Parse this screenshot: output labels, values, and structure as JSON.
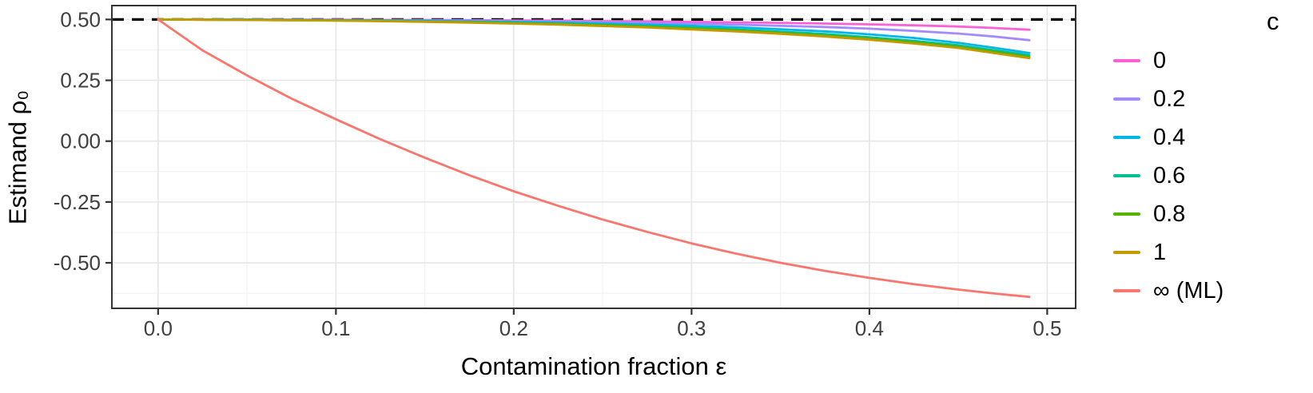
{
  "chart_data": {
    "type": "line",
    "title": "",
    "xlabel": "Contamination fraction ε",
    "ylabel": "Estimand ρ₀",
    "legend_title": "c",
    "legend_position": "right",
    "grid": true,
    "panel_background": "#FFFFFF",
    "panel_border_color": "#333333",
    "major_grid_color": "#E6E6E6",
    "minor_grid_color": "#F3F3F3",
    "tick_label_color": "#404040",
    "xlim": [
      -0.026,
      0.516
    ],
    "ylim": [
      -0.687,
      0.557
    ],
    "x_ticks": [
      {
        "v": 0.0,
        "label": "0.0"
      },
      {
        "v": 0.1,
        "label": "0.1"
      },
      {
        "v": 0.2,
        "label": "0.2"
      },
      {
        "v": 0.3,
        "label": "0.3"
      },
      {
        "v": 0.4,
        "label": "0.4"
      },
      {
        "v": 0.5,
        "label": "0.5"
      }
    ],
    "y_ticks": [
      {
        "v": -0.5,
        "label": "-0.50"
      },
      {
        "v": -0.25,
        "label": "-0.25"
      },
      {
        "v": 0.0,
        "label": "0.00"
      },
      {
        "v": 0.25,
        "label": "0.25"
      },
      {
        "v": 0.5,
        "label": "0.50"
      }
    ],
    "reference_line": {
      "y": 0.5,
      "style": "dashed",
      "color": "#000000"
    },
    "x": [
      0,
      0.025,
      0.05,
      0.075,
      0.1,
      0.125,
      0.15,
      0.175,
      0.2,
      0.225,
      0.25,
      0.275,
      0.3,
      0.325,
      0.35,
      0.375,
      0.4,
      0.425,
      0.45,
      0.47,
      0.49
    ],
    "series": [
      {
        "name": "0",
        "color": "#FB61D7",
        "values": [
          0.5,
          0.5,
          0.5,
          0.499,
          0.499,
          0.498,
          0.498,
          0.497,
          0.496,
          0.495,
          0.493,
          0.492,
          0.49,
          0.488,
          0.486,
          0.483,
          0.48,
          0.476,
          0.471,
          0.465,
          0.458
        ]
      },
      {
        "name": "0.2",
        "color": "#A58AFF",
        "values": [
          0.5,
          0.5,
          0.499,
          0.499,
          0.498,
          0.497,
          0.496,
          0.495,
          0.493,
          0.491,
          0.489,
          0.486,
          0.483,
          0.479,
          0.474,
          0.469,
          0.462,
          0.453,
          0.442,
          0.43,
          0.415
        ]
      },
      {
        "name": "0.4",
        "color": "#00B6EB",
        "values": [
          0.5,
          0.5,
          0.499,
          0.498,
          0.497,
          0.496,
          0.494,
          0.492,
          0.49,
          0.487,
          0.483,
          0.479,
          0.474,
          0.468,
          0.46,
          0.451,
          0.439,
          0.424,
          0.404,
          0.384,
          0.362
        ]
      },
      {
        "name": "0.6",
        "color": "#00C094",
        "values": [
          0.5,
          0.499,
          0.499,
          0.498,
          0.496,
          0.494,
          0.492,
          0.49,
          0.487,
          0.483,
          0.479,
          0.473,
          0.467,
          0.459,
          0.45,
          0.44,
          0.427,
          0.412,
          0.394,
          0.374,
          0.353
        ]
      },
      {
        "name": "0.8",
        "color": "#53B400",
        "values": [
          0.5,
          0.499,
          0.498,
          0.497,
          0.496,
          0.494,
          0.491,
          0.488,
          0.485,
          0.481,
          0.476,
          0.47,
          0.463,
          0.455,
          0.445,
          0.434,
          0.421,
          0.406,
          0.388,
          0.368,
          0.346
        ]
      },
      {
        "name": "1",
        "color": "#C49A00",
        "values": [
          0.5,
          0.499,
          0.498,
          0.497,
          0.495,
          0.493,
          0.49,
          0.487,
          0.483,
          0.479,
          0.473,
          0.467,
          0.459,
          0.451,
          0.441,
          0.43,
          0.417,
          0.401,
          0.383,
          0.362,
          0.341
        ]
      },
      {
        "name": "∞ (ML)",
        "color": "#F8766D",
        "values": [
          0.5,
          0.373,
          0.27,
          0.175,
          0.09,
          0.008,
          -0.068,
          -0.14,
          -0.206,
          -0.266,
          -0.322,
          -0.373,
          -0.42,
          -0.462,
          -0.5,
          -0.533,
          -0.562,
          -0.588,
          -0.61,
          -0.626,
          -0.64
        ]
      }
    ]
  }
}
